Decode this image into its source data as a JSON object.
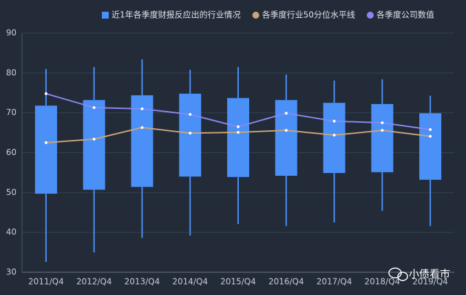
{
  "chart_data": {
    "type": "boxplot",
    "categories": [
      "2011/Q4",
      "2012/Q4",
      "2013/Q4",
      "2014/Q4",
      "2015/Q4",
      "2016/Q4",
      "2017/Q4",
      "2018/Q4",
      "2019/Q4"
    ],
    "boxes": {
      "name": "近1年各季度财报反应出的行业情况",
      "color": "#4a90f7",
      "low": [
        32.6,
        35.0,
        38.6,
        39.2,
        42.1,
        41.6,
        42.5,
        45.4,
        41.6
      ],
      "q1": [
        49.7,
        50.7,
        51.4,
        54.0,
        53.9,
        54.2,
        54.9,
        55.1,
        53.2
      ],
      "q3": [
        71.8,
        73.2,
        74.4,
        74.8,
        73.7,
        73.2,
        72.5,
        72.2,
        69.9
      ],
      "high": [
        81.0,
        81.5,
        83.4,
        80.8,
        81.5,
        79.6,
        78.1,
        78.4,
        74.3
      ]
    },
    "series": [
      {
        "name": "各季度行业50分位水平线",
        "color": "#c9a57a",
        "values": [
          62.5,
          63.4,
          66.3,
          64.9,
          65.1,
          65.6,
          64.4,
          65.6,
          64.1
        ]
      },
      {
        "name": "各季度公司数值",
        "color": "#8c87f0",
        "values": [
          74.8,
          71.3,
          71.0,
          69.6,
          66.5,
          69.9,
          67.9,
          67.5,
          65.8
        ]
      }
    ],
    "ylim": [
      30,
      90
    ],
    "yticks": [
      30,
      40,
      50,
      60,
      70,
      80,
      90
    ],
    "grid": true,
    "watermark": "小债看市"
  }
}
